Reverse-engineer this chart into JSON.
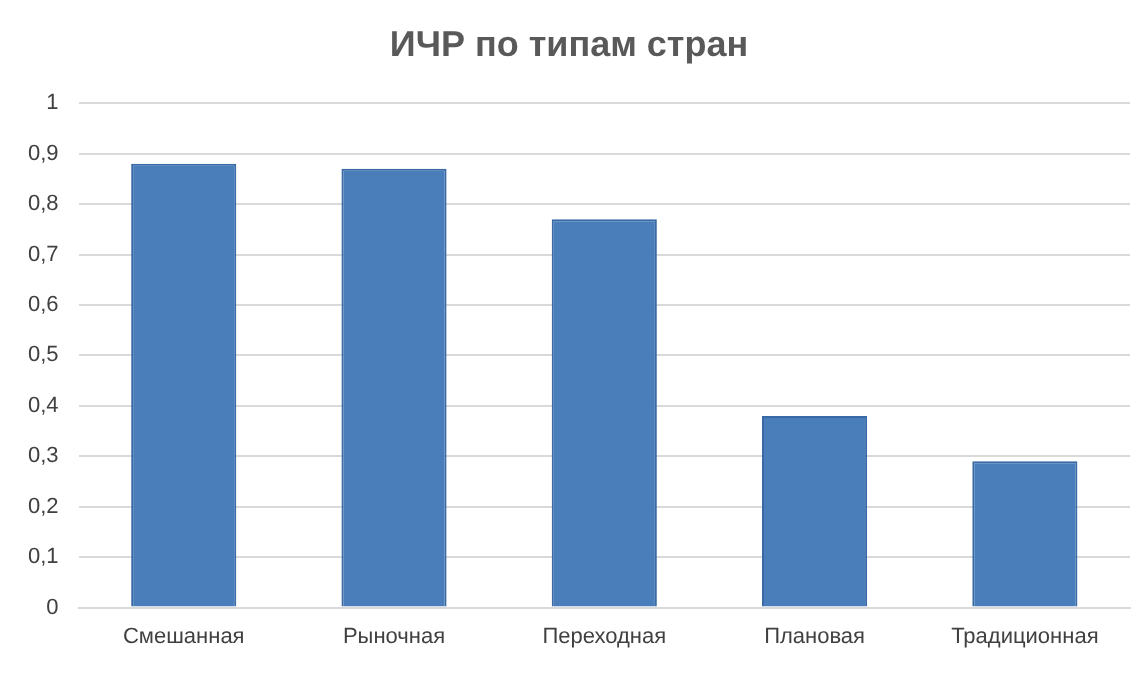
{
  "chart_data": {
    "type": "bar",
    "title": "ИЧР по типам стран",
    "categories": [
      "Смешанная",
      "Рыночная",
      "Переходная",
      "Плановая",
      "Традиционная"
    ],
    "values": [
      0.88,
      0.87,
      0.77,
      0.38,
      0.29
    ],
    "color": "#4a7ebb",
    "ylim": [
      0,
      1
    ],
    "yticks": [
      0,
      {
        "value": 0.1,
        "label": "0,1"
      },
      {
        "value": 0.2,
        "label": "0,2"
      },
      {
        "value": 0.3,
        "label": "0,3"
      },
      {
        "value": 0.4,
        "label": "0,4"
      },
      {
        "value": 0.5,
        "label": "0,5"
      },
      {
        "value": 0.6,
        "label": "0,6"
      },
      {
        "value": 0.7,
        "label": "0,7"
      },
      {
        "value": 0.8,
        "label": "0,8"
      },
      {
        "value": 0.9,
        "label": "0,9"
      },
      1
    ],
    "grid": "y",
    "legend": false
  }
}
